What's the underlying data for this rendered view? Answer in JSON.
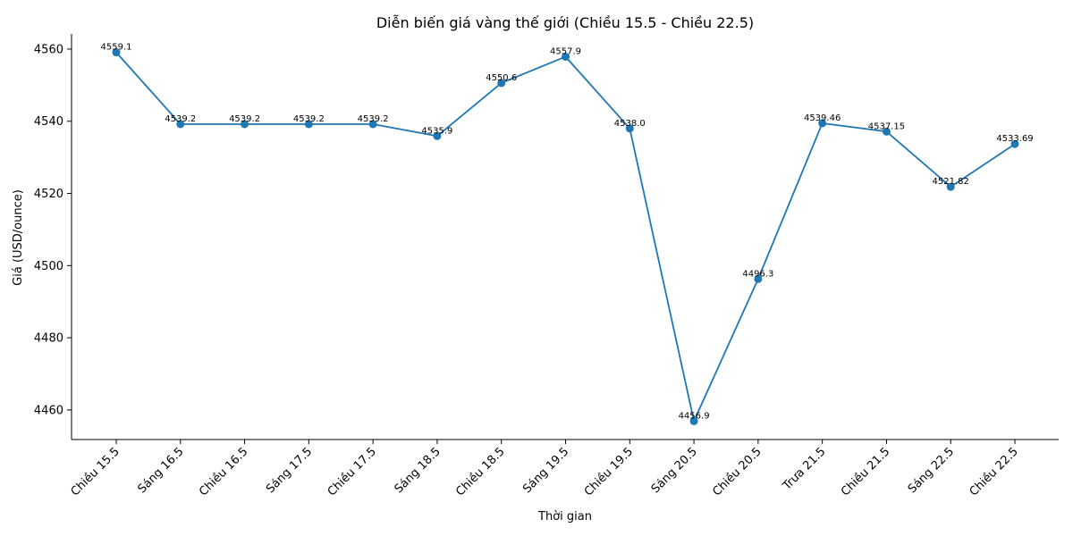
{
  "chart_data": {
    "type": "line",
    "title": "Diễn biến giá vàng thế giới (Chiều 15.5 - Chiều 22.5)",
    "xlabel": "Thời gian",
    "ylabel": "Giá (USD/ounce)",
    "categories": [
      "Chiều 15.5",
      "Sáng 16.5",
      "Chiều 16.5",
      "Sáng 17.5",
      "Chiều 17.5",
      "Sáng 18.5",
      "Chiều 18.5",
      "Sáng 19.5",
      "Chiều 19.5",
      "Sáng 20.5",
      "Chiều 20.5",
      "Trưa 21.5",
      "Chiều 21.5",
      "Sáng 22.5",
      "Chiều 22.5"
    ],
    "series": [
      {
        "values": [
          4559.1,
          4539.2,
          4539.2,
          4539.2,
          4539.2,
          4535.9,
          4550.6,
          4557.9,
          4538.0,
          4456.9,
          4496.3,
          4539.46,
          4537.15,
          4521.82,
          4533.69
        ],
        "data_labels": [
          "4559.1",
          "4539.2",
          "4539.2",
          "4539.2",
          "4539.2",
          "4535.9",
          "4550.6",
          "4557.9",
          "4538.0",
          "4456.9",
          "4496.3",
          "4539.46",
          "4537.15",
          "4521.82",
          "4533.69"
        ],
        "color": "#1f77b4"
      }
    ],
    "yticks": [
      4460,
      4480,
      4500,
      4520,
      4540,
      4560
    ],
    "ylim": [
      4451.8,
      4564.2
    ],
    "grid": false,
    "legend": "none",
    "spines": [
      "left",
      "bottom"
    ]
  }
}
